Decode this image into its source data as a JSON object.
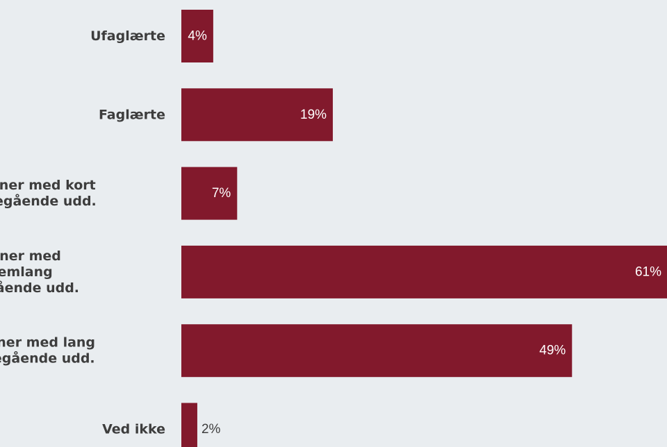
{
  "chart_data": {
    "type": "bar",
    "orientation": "horizontal",
    "categories": [
      [
        "Ufaglærte"
      ],
      [
        "Faglærte"
      ],
      [
        "Personer med kort",
        "videregående udd."
      ],
      [
        "Personer med",
        "mellemlang",
        "videregående udd."
      ],
      [
        "Personer med lang",
        "videregående udd."
      ],
      [
        "Ved ikke"
      ]
    ],
    "values": [
      4,
      19,
      7,
      61,
      49,
      2
    ],
    "value_labels": [
      "4%",
      "19%",
      "7%",
      "61%",
      "49%",
      "2%"
    ],
    "title": "",
    "xlabel": "",
    "ylabel": "",
    "xlim": [
      0,
      61
    ],
    "grid": false,
    "legend": "none",
    "colors": {
      "bar": "#82192c",
      "label_inside": "#ffffff",
      "label_outside": "#3d3d3d",
      "category_text": "#3d3d3d",
      "background": "#e9edf0"
    }
  }
}
